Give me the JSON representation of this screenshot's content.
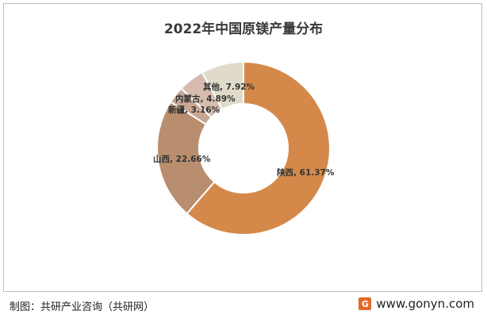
{
  "chart_data": {
    "type": "pie",
    "title": "2022年中国原镁产量分布",
    "categories": [
      "陕西",
      "山西",
      "新疆",
      "内蒙古",
      "其他"
    ],
    "values": [
      61.37,
      22.66,
      3.16,
      4.89,
      7.92
    ],
    "labels": [
      "陕西, 61.37%",
      "山西, 22.66%",
      "新疆, 3.16%",
      "内蒙古, 4.89%",
      "其他, 7.92%"
    ],
    "colors": [
      "#d4894a",
      "#b98e6e",
      "#c9a794",
      "#d6bcae",
      "#e0dacb"
    ],
    "legend": "none"
  },
  "footer": {
    "credit": "制图：共研产业咨询（共研网）",
    "logo_glyph": "G",
    "site": "www.gonyn.com"
  }
}
